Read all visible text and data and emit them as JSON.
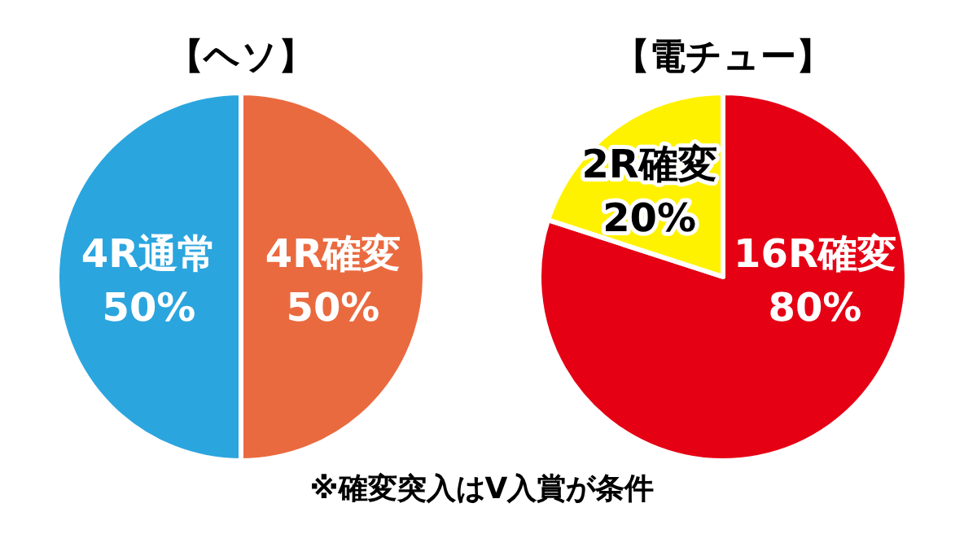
{
  "chart_data": [
    {
      "type": "pie",
      "title": "【ヘソ】",
      "categories": [
        "4R確変",
        "4R通常"
      ],
      "values": [
        50,
        50
      ],
      "colors": [
        "#ea6a3f",
        "#2ba5de"
      ],
      "value_labels": [
        "50%",
        "50%"
      ]
    },
    {
      "type": "pie",
      "title": "【電チュー】",
      "categories": [
        "16R確変",
        "2R確変"
      ],
      "values": [
        80,
        20
      ],
      "colors": [
        "#e50014",
        "#fff200"
      ],
      "value_labels": [
        "80%",
        "20%"
      ],
      "annotations": [
        "※確変突入はV入賞が条件"
      ]
    }
  ]
}
